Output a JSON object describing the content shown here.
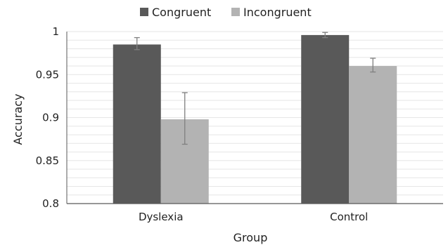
{
  "chart_data": {
    "type": "bar",
    "categories": [
      "Dyslexia",
      "Control"
    ],
    "series": [
      {
        "name": "Congruent",
        "color": "#595959",
        "values": [
          0.985,
          0.996
        ],
        "error": [
          [
            0.979,
            0.993
          ],
          [
            0.993,
            0.999
          ]
        ]
      },
      {
        "name": "Incongruent",
        "color": "#b3b3b3",
        "values": [
          0.898,
          0.96
        ],
        "error": [
          [
            0.869,
            0.929
          ],
          [
            0.953,
            0.969
          ]
        ]
      }
    ],
    "xlabel": "Group",
    "ylabel": "Accuracy",
    "ylim": [
      0.8,
      1.0
    ],
    "yticks": [
      "0.8",
      "0.85",
      "0.9",
      "0.95",
      "1"
    ],
    "ytick_values": [
      0.8,
      0.85,
      0.9,
      0.95,
      1.0
    ],
    "minor_gridlines": true,
    "legend_position": "top",
    "error_bar_color": "#7f7f7f",
    "grid_color": "#e6e6e6",
    "axis_color": "#595959"
  }
}
